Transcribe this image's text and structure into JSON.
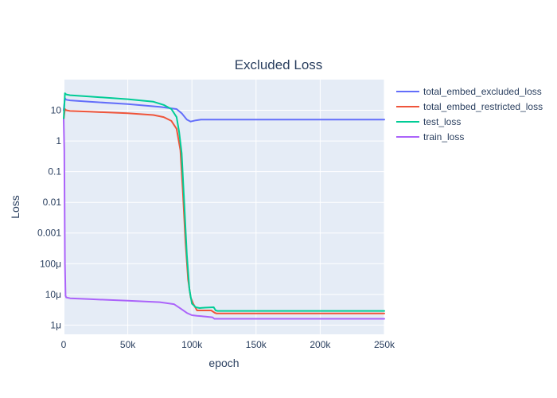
{
  "chart_data": {
    "type": "line",
    "title": "Excluded Loss",
    "xlabel": "epoch",
    "ylabel": "Loss",
    "xlim": [
      0,
      250000
    ],
    "ylim": [
      5e-07,
      100
    ],
    "yscale": "log",
    "grid": true,
    "legend_position": "right",
    "x_ticks": [
      {
        "value": 0,
        "label": "0"
      },
      {
        "value": 50000,
        "label": "50k"
      },
      {
        "value": 100000,
        "label": "100k"
      },
      {
        "value": 150000,
        "label": "150k"
      },
      {
        "value": 200000,
        "label": "200k"
      },
      {
        "value": 250000,
        "label": "250k"
      }
    ],
    "y_ticks": [
      {
        "value": 1e-06,
        "label": "1μ"
      },
      {
        "value": 1e-05,
        "label": "10μ"
      },
      {
        "value": 0.0001,
        "label": "100μ"
      },
      {
        "value": 0.001,
        "label": "0.001"
      },
      {
        "value": 0.01,
        "label": "0.01"
      },
      {
        "value": 0.1,
        "label": "0.1"
      },
      {
        "value": 1,
        "label": "1"
      },
      {
        "value": 10,
        "label": "10"
      }
    ],
    "series": [
      {
        "name": "total_embed_excluded_loss",
        "color": "#636efa",
        "x": [
          0,
          1000,
          2000,
          5000,
          20000,
          50000,
          75000,
          88000,
          92000,
          96000,
          99000,
          103000,
          107000,
          120000,
          150000,
          200000,
          250000
        ],
        "y": [
          10,
          25,
          22,
          21,
          19,
          16,
          13,
          11,
          8,
          5,
          4.3,
          4.7,
          5,
          5,
          5,
          5,
          5
        ]
      },
      {
        "name": "total_embed_restricted_loss",
        "color": "#ef553b",
        "x": [
          0,
          1000,
          2000,
          5000,
          20000,
          50000,
          70000,
          78000,
          84000,
          88000,
          91000,
          93000,
          95000,
          97000,
          99000,
          101000,
          104000,
          107000,
          115000,
          118000,
          119000,
          150000,
          200000,
          250000
        ],
        "y": [
          5,
          11,
          10,
          9.5,
          9,
          8,
          7,
          6,
          4.5,
          2.5,
          0.5,
          0.02,
          0.0005,
          3e-05,
          8e-06,
          5e-06,
          3e-06,
          3e-06,
          3e-06,
          2.5e-06,
          2.4e-06,
          2.4e-06,
          2.4e-06,
          2.4e-06
        ]
      },
      {
        "name": "test_loss",
        "color": "#00cc96",
        "x": [
          0,
          1000,
          2000,
          5000,
          20000,
          50000,
          70000,
          78000,
          84000,
          88000,
          90000,
          92000,
          94000,
          96000,
          98000,
          100000,
          103000,
          106000,
          110000,
          117000,
          118500,
          120000,
          150000,
          200000,
          250000
        ],
        "y": [
          5,
          36,
          33,
          31,
          28,
          23,
          19,
          15,
          11,
          6,
          2,
          0.4,
          0.01,
          0.0002,
          1.5e-05,
          5e-06,
          3.8e-06,
          3.6e-06,
          3.7e-06,
          3.8e-06,
          3e-06,
          2.9e-06,
          2.9e-06,
          2.9e-06,
          2.9e-06
        ]
      },
      {
        "name": "train_loss",
        "color": "#ab63fa",
        "x": [
          0,
          500,
          1000,
          1500,
          2000,
          5000,
          20000,
          50000,
          75000,
          86000,
          91000,
          96000,
          100000,
          104000,
          110000,
          116000,
          117500,
          120000,
          150000,
          200000,
          250000
        ],
        "y": [
          5,
          0.5,
          0.0001,
          9e-06,
          8e-06,
          7.5e-06,
          7e-06,
          6.2e-06,
          5.6e-06,
          4.8e-06,
          3.5e-06,
          2.5e-06,
          2.1e-06,
          2e-06,
          1.9e-06,
          1.8e-06,
          1.6e-06,
          1.6e-06,
          1.6e-06,
          1.6e-06,
          1.6e-06
        ]
      }
    ]
  }
}
